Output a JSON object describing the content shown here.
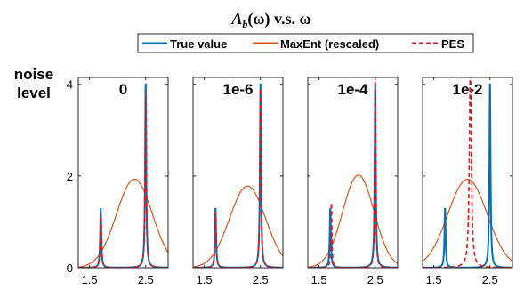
{
  "figure": {
    "title_main": "A",
    "title_sub": "b",
    "title_rest": "(ω) v.s. ω",
    "row_label_line1": "noise",
    "row_label_line2": "level"
  },
  "legend": {
    "items": [
      {
        "label": "True value",
        "color": "#0072BD",
        "style": "solid"
      },
      {
        "label": "MaxEnt (rescaled)",
        "color": "#D95319",
        "style": "solid"
      },
      {
        "label": "PES",
        "color": "#E8131A",
        "style": "dashed"
      }
    ]
  },
  "chart_data": {
    "type": "line",
    "xlim": [
      1.3,
      2.9
    ],
    "ylim": [
      0,
      4.15
    ],
    "xticks": [
      1.5,
      2.5
    ],
    "xtick_labels": [
      "1.5",
      "2.5"
    ],
    "yticks": [
      0,
      2,
      4
    ],
    "ytick_labels": [
      "0",
      "2",
      "4"
    ],
    "true_value": {
      "name": "True value",
      "peaks": [
        {
          "center": 1.7,
          "height": 1.3,
          "width": 0.012
        },
        {
          "center": 2.5,
          "height": 4.02,
          "width": 0.012
        }
      ]
    },
    "panels": [
      {
        "noise_label": "0",
        "maxent": {
          "center": 2.3,
          "height": 1.93,
          "sigma": 0.32
        },
        "pes_peaks": [
          {
            "center": 1.7,
            "height": 1.2,
            "width": 0.012
          },
          {
            "center": 2.5,
            "height": 3.85,
            "width": 0.012
          }
        ]
      },
      {
        "noise_label": "1e-6",
        "maxent": {
          "center": 2.27,
          "height": 1.78,
          "sigma": 0.32
        },
        "pes_peaks": [
          {
            "center": 1.7,
            "height": 1.2,
            "width": 0.012
          },
          {
            "center": 2.5,
            "height": 3.9,
            "width": 0.012
          }
        ]
      },
      {
        "noise_label": "1e-4",
        "maxent": {
          "center": 2.2,
          "height": 2.02,
          "sigma": 0.28
        },
        "pes_peaks": [
          {
            "center": 1.72,
            "height": 1.42,
            "width": 0.01
          },
          {
            "center": 2.5,
            "height": 4.15,
            "width": 0.01
          }
        ]
      },
      {
        "noise_label": "1e-2",
        "maxent": {
          "center": 2.1,
          "height": 1.93,
          "sigma": 0.35
        },
        "pes_peaks": [
          {
            "center": 2.15,
            "height": 4.5,
            "width": 0.02
          }
        ]
      }
    ]
  }
}
